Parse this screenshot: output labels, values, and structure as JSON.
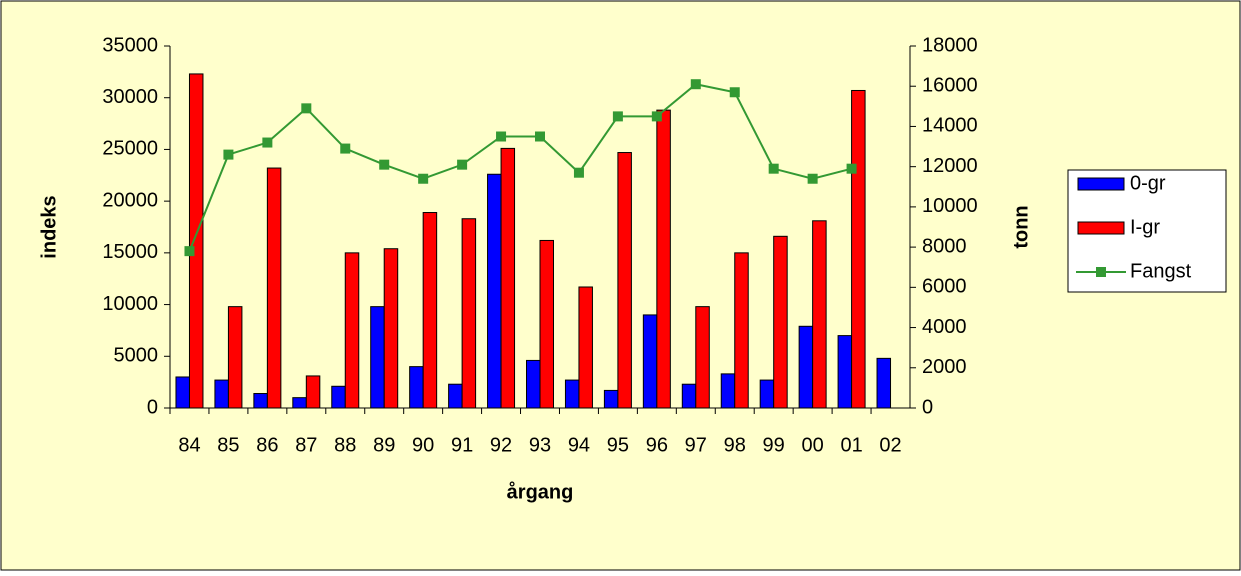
{
  "chart_data": {
    "type": "bar_line",
    "categories": [
      "84",
      "85",
      "86",
      "87",
      "88",
      "89",
      "90",
      "91",
      "92",
      "93",
      "94",
      "95",
      "96",
      "97",
      "98",
      "99",
      "00",
      "01",
      "02"
    ],
    "series": [
      {
        "name": "0-gr",
        "color": "#0000ff",
        "type": "bar",
        "values": [
          3000,
          2700,
          1400,
          1000,
          2100,
          9800,
          4000,
          2300,
          22600,
          4600,
          2700,
          1700,
          9000,
          2300,
          3300,
          2700,
          7900,
          7000,
          4800
        ]
      },
      {
        "name": "I-gr",
        "color": "#ff0000",
        "type": "bar",
        "values": [
          32300,
          9800,
          23200,
          3100,
          15000,
          15400,
          18900,
          18300,
          25100,
          16200,
          11700,
          24700,
          28800,
          9800,
          15000,
          16600,
          18100,
          30700,
          null
        ]
      },
      {
        "name": "Fangst",
        "color": "#339933",
        "type": "line",
        "axis": "y2",
        "values": [
          7800,
          12600,
          13200,
          14900,
          12900,
          12100,
          11400,
          12100,
          13500,
          13500,
          11700,
          14500,
          14500,
          16100,
          15700,
          11900,
          11400,
          11900,
          null
        ]
      }
    ],
    "ylim": [
      0,
      35000
    ],
    "yticks": [
      0,
      5000,
      10000,
      15000,
      20000,
      25000,
      30000,
      35000
    ],
    "y2lim": [
      0,
      18000
    ],
    "y2ticks": [
      0,
      2000,
      4000,
      6000,
      8000,
      10000,
      12000,
      14000,
      16000,
      18000
    ],
    "ylabel": "indeks",
    "y2label": "tonn",
    "xlabel": "årgang",
    "legend": "right",
    "background": "#ffffcc"
  }
}
